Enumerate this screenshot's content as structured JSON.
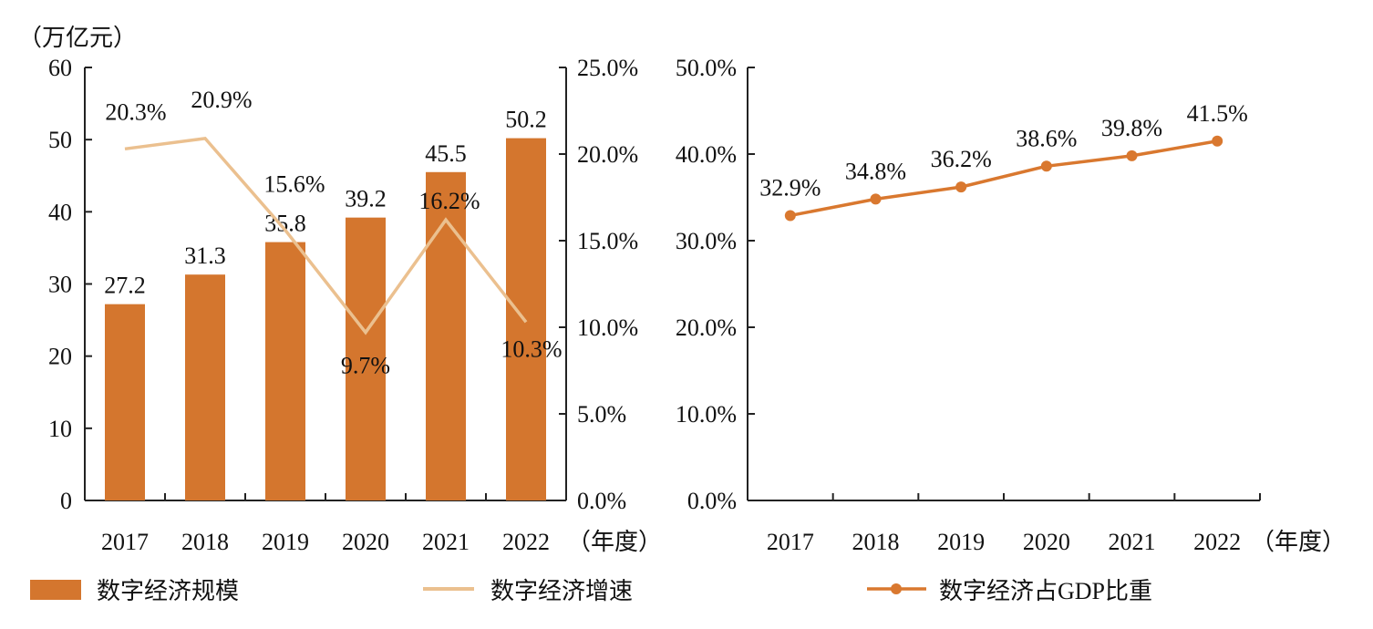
{
  "chart_data": [
    {
      "type": "bar+line",
      "categories": [
        "2017",
        "2018",
        "2019",
        "2020",
        "2021",
        "2022"
      ],
      "xlabel": "（年度）",
      "ylabel": "（万亿元）",
      "ylim": [
        0,
        60
      ],
      "yticks": [
        "0",
        "10",
        "20",
        "30",
        "40",
        "50",
        "60"
      ],
      "y2lim": [
        0,
        25
      ],
      "y2ticks": [
        "0.0%",
        "5.0%",
        "10.0%",
        "15.0%",
        "20.0%",
        "25.0%"
      ],
      "grid": false,
      "series": [
        {
          "name": "数字经济规模",
          "type": "bar",
          "axis": "left",
          "color": "#D4762E",
          "values": [
            27.2,
            31.3,
            35.8,
            39.2,
            45.5,
            50.2
          ],
          "labels": [
            "27.2",
            "31.3",
            "35.8",
            "39.2",
            "45.5",
            "50.2"
          ]
        },
        {
          "name": "数字经济增速",
          "type": "line",
          "axis": "right",
          "color": "#EBC08F",
          "values": [
            20.3,
            20.9,
            15.6,
            9.7,
            16.2,
            10.3
          ],
          "labels": [
            "20.3%",
            "20.9%",
            "15.6%",
            "9.7%",
            "16.2%",
            "10.3%"
          ]
        }
      ]
    },
    {
      "type": "line",
      "categories": [
        "2017",
        "2018",
        "2019",
        "2020",
        "2021",
        "2022"
      ],
      "xlabel": "（年度）",
      "ylim": [
        0,
        50
      ],
      "yticks": [
        "0.0%",
        "10.0%",
        "20.0%",
        "30.0%",
        "40.0%",
        "50.0%"
      ],
      "grid": false,
      "series": [
        {
          "name": "数字经济占GDP比重",
          "type": "line-marker",
          "color": "#D9782F",
          "values": [
            32.9,
            34.8,
            36.2,
            38.6,
            39.8,
            41.5
          ],
          "labels": [
            "32.9%",
            "34.8%",
            "36.2%",
            "38.6%",
            "39.8%",
            "41.5%"
          ]
        }
      ]
    }
  ],
  "legend_placement": "bottom"
}
